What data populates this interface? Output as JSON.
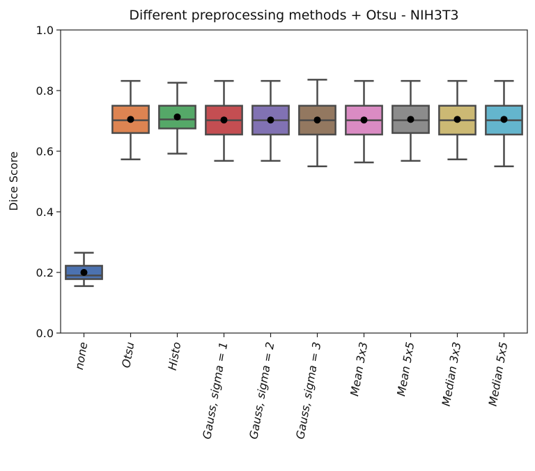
{
  "chart_data": {
    "type": "box",
    "title": "Different preprocessing methods + Otsu - NIH3T3",
    "xlabel": "",
    "ylabel": "Dice Score",
    "ylim": [
      0.0,
      1.0
    ],
    "yticks": [
      "0.0",
      "0.2",
      "0.4",
      "0.6",
      "0.8",
      "1.0"
    ],
    "grid": false,
    "legend": "none",
    "categories": [
      "none",
      "Otsu",
      "Histo",
      "Gauss, sigma = 1",
      "Gauss, sigma = 2",
      "Gauss, sigma = 3",
      "Mean 3x3",
      "Mean 5x5",
      "Median 3x3",
      "Median 5x5"
    ],
    "boxes": [
      {
        "category": "none",
        "whisker_low": 0.155,
        "q1": 0.178,
        "median": 0.19,
        "q3": 0.222,
        "whisker_high": 0.265,
        "mean": 0.2,
        "color": "#4c72b0"
      },
      {
        "category": "Otsu",
        "whisker_low": 0.573,
        "q1": 0.66,
        "median": 0.702,
        "q3": 0.75,
        "whisker_high": 0.832,
        "mean": 0.705,
        "color": "#dd8452"
      },
      {
        "category": "Histo",
        "whisker_low": 0.592,
        "q1": 0.675,
        "median": 0.705,
        "q3": 0.75,
        "whisker_high": 0.826,
        "mean": 0.713,
        "color": "#55a868"
      },
      {
        "category": "Gauss, sigma = 1",
        "whisker_low": 0.568,
        "q1": 0.655,
        "median": 0.702,
        "q3": 0.75,
        "whisker_high": 0.832,
        "mean": 0.703,
        "color": "#c44e52"
      },
      {
        "category": "Gauss, sigma = 2",
        "whisker_low": 0.568,
        "q1": 0.655,
        "median": 0.702,
        "q3": 0.75,
        "whisker_high": 0.832,
        "mean": 0.703,
        "color": "#8172b3"
      },
      {
        "category": "Gauss, sigma = 3",
        "whisker_low": 0.55,
        "q1": 0.655,
        "median": 0.702,
        "q3": 0.75,
        "whisker_high": 0.836,
        "mean": 0.703,
        "color": "#937860"
      },
      {
        "category": "Mean 3x3",
        "whisker_low": 0.563,
        "q1": 0.655,
        "median": 0.702,
        "q3": 0.75,
        "whisker_high": 0.832,
        "mean": 0.703,
        "color": "#da8bc3"
      },
      {
        "category": "Mean 5x5",
        "whisker_low": 0.568,
        "q1": 0.66,
        "median": 0.702,
        "q3": 0.75,
        "whisker_high": 0.832,
        "mean": 0.705,
        "color": "#8c8c8c"
      },
      {
        "category": "Median 3x3",
        "whisker_low": 0.573,
        "q1": 0.655,
        "median": 0.702,
        "q3": 0.75,
        "whisker_high": 0.832,
        "mean": 0.705,
        "color": "#ccb974"
      },
      {
        "category": "Median 5x5",
        "whisker_low": 0.55,
        "q1": 0.655,
        "median": 0.702,
        "q3": 0.75,
        "whisker_high": 0.832,
        "mean": 0.705,
        "color": "#64b5cd"
      }
    ]
  }
}
